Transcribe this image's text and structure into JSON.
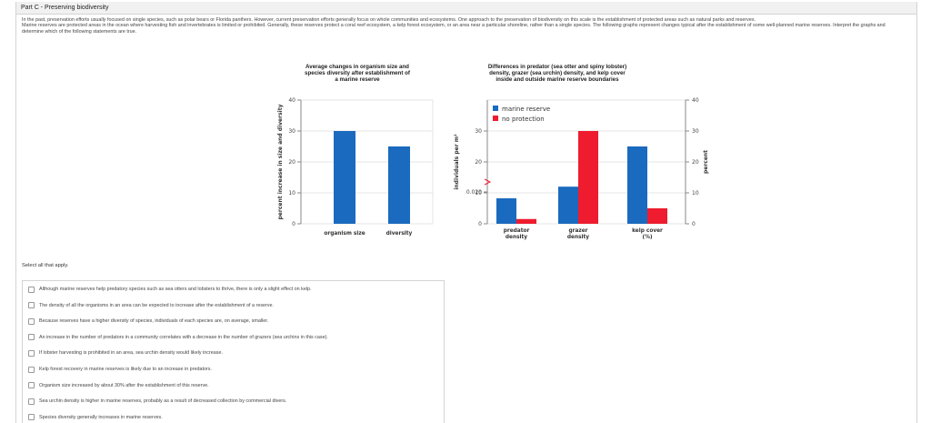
{
  "header": {
    "title": "Part C - Preserving biodiversity"
  },
  "intro": {
    "p1": "In the past, preservation efforts usually focused on single species, such as polar bears or Florida panthers. However, current preservation efforts generally focus on whole communities and ecosystems. One approach to the preservation of biodiversity on this scale is the establishment of protected areas such as natural parks and reserves.",
    "p2": "Marine reserves are protected areas in the ocean where harvesting fish and invertebrates is limited or prohibited. Generally, these reserves protect a coral reef ecosystem, a kelp forest ecosystem, or an area near a particular shoreline, rather than a single species. The following graphs represent changes typical after the establishment of some well-planned marine reserves. Interpret the graphs and determine which of the following statements are true."
  },
  "colors": {
    "blue": "#1a6abf",
    "red": "#ee1c2e",
    "grid": "#e4e4e4",
    "axis": "#888888"
  },
  "chart_data": [
    {
      "type": "bar",
      "title": "Average changes in organism size and species diversity after establishment of a marine reserve",
      "title_lines": [
        "Average changes in organism size and",
        "species diversity after establishment of",
        "a marine reserve"
      ],
      "categories": [
        "organism size",
        "diversity"
      ],
      "values": [
        30,
        25
      ],
      "ylabel": "percent increase in size and diversity",
      "ylim": [
        0,
        40
      ],
      "yticks": [
        "0",
        "10",
        "20",
        "30",
        "40"
      ],
      "grid": true
    },
    {
      "type": "bar",
      "title": "Differences in predator (sea otter and spiny lobster) density, grazer (sea urchin) density, and kelp cover inside and outside marine reserve boundaries",
      "title_lines": [
        "Differences in predator (sea otter and spiny lobster)",
        "density, grazer (sea urchin) density, and kelp cover",
        "inside and outside marine reserve boundaries"
      ],
      "categories": [
        [
          "predator",
          "density"
        ],
        [
          "grazer",
          "density"
        ],
        [
          "kelp cover",
          "(%)"
        ]
      ],
      "series": [
        {
          "name": "marine reserve",
          "values": [
            0.016,
            12,
            25
          ]
        },
        {
          "name": "no protection",
          "values": [
            0.003,
            30,
            5
          ]
        }
      ],
      "legend": "top-left",
      "ylabel_left": "individuals per m²",
      "ylabel_right": "percent",
      "left_ticks": [
        "0",
        "0.020",
        "10",
        "20",
        "30"
      ],
      "right_ticks": [
        "0",
        "10",
        "20",
        "30",
        "40"
      ],
      "left_axis_note": "broken axis between 0.020 and 10",
      "grid": true
    }
  ],
  "question": {
    "select_all": "Select all that apply.",
    "options": [
      "Although marine reserves help predatory species such as sea otters and lobsters to thrive, there is only a slight effect on kelp.",
      "The density of all the organisms in an area can be expected to increase after the establishment of a reserve.",
      "Because reserves have a higher diversity of species, individuals of each species are, on average, smaller.",
      "An increase in the number of predators in a community correlates with a decrease in the number of grazers (sea urchins in this case).",
      "If lobster harvesting is prohibited in an area, sea urchin density would likely increase.",
      "Kelp forest recovery in marine reserves is likely due to an increase in predators.",
      "Organism size increased by about 30% after the establishment of this reserve.",
      "Sea urchin density is higher in marine reserves, probably as a result of decreased collection by commercial divers.",
      "Species diversity generally increases in marine reserves."
    ]
  }
}
